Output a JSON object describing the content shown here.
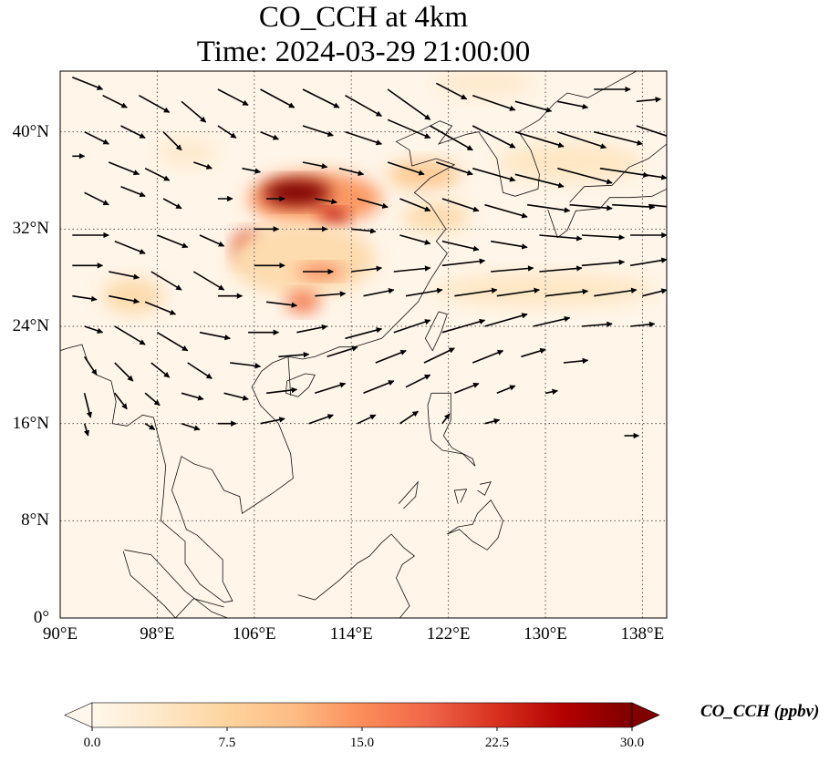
{
  "title": {
    "line1": "CO_CCH at 4km",
    "line2": "Time: 2024-03-29 21:00:00"
  },
  "map": {
    "projection": "PlateCarree",
    "lon_range": [
      90,
      140
    ],
    "lat_range": [
      0,
      45
    ],
    "lat_ticks": [
      {
        "value": 40,
        "label": "40°N"
      },
      {
        "value": 32,
        "label": "32°N"
      },
      {
        "value": 24,
        "label": "24°N"
      },
      {
        "value": 16,
        "label": "16°N"
      },
      {
        "value": 8,
        "label": "8°N"
      },
      {
        "value": 0,
        "label": "0°"
      }
    ],
    "lon_ticks": [
      {
        "value": 90,
        "label": "90°E"
      },
      {
        "value": 98,
        "label": "98°E"
      },
      {
        "value": 106,
        "label": "106°E"
      },
      {
        "value": 114,
        "label": "114°E"
      },
      {
        "value": 122,
        "label": "122°E"
      },
      {
        "value": 130,
        "label": "130°E"
      },
      {
        "value": 138,
        "label": "138°E"
      }
    ],
    "gridlines": "dotted",
    "plumes": [
      {
        "lon": 111,
        "lat": 34.5,
        "rlon": 5.5,
        "rlat": 2.2,
        "value": 14
      },
      {
        "lon": 109.5,
        "lat": 35.0,
        "rlon": 2.8,
        "rlat": 1.1,
        "value": 30
      },
      {
        "lon": 112.5,
        "lat": 33.0,
        "rlon": 1.2,
        "rlat": 0.6,
        "value": 26
      },
      {
        "lon": 105.5,
        "lat": 30.5,
        "rlon": 1.2,
        "rlat": 1.3,
        "value": 22
      },
      {
        "lon": 110,
        "lat": 29.5,
        "rlon": 6,
        "rlat": 3,
        "value": 6
      },
      {
        "lon": 111.5,
        "lat": 28.5,
        "rlon": 2,
        "rlat": 0.6,
        "value": 16
      },
      {
        "lon": 110,
        "lat": 26,
        "rlon": 1.4,
        "rlat": 0.9,
        "value": 17
      },
      {
        "lon": 120,
        "lat": 36.5,
        "rlon": 3,
        "rlat": 1.2,
        "value": 9
      },
      {
        "lon": 121,
        "lat": 33,
        "rlon": 2.8,
        "rlat": 1.2,
        "value": 6
      },
      {
        "lon": 96,
        "lat": 26.5,
        "rlon": 2.5,
        "rlat": 1.5,
        "value": 6
      },
      {
        "lon": 100.5,
        "lat": 38.3,
        "rlon": 2.5,
        "rlat": 1.2,
        "value": 3
      },
      {
        "lon": 132,
        "lat": 37.5,
        "rlon": 6,
        "rlat": 1.6,
        "value": 4
      },
      {
        "lon": 130,
        "lat": 27,
        "rlon": 9,
        "rlat": 1.4,
        "value": 4
      },
      {
        "lon": 125,
        "lat": 44,
        "rlon": 4,
        "rlat": 1.2,
        "value": 3
      }
    ],
    "wind_vectors": [
      [
        91,
        44.5,
        2.5,
        -1
      ],
      [
        93.5,
        43,
        2,
        -1
      ],
      [
        96.5,
        43,
        2.5,
        -1.4
      ],
      [
        100,
        42.5,
        2,
        -1.7
      ],
      [
        103,
        43.5,
        2.5,
        -1.3
      ],
      [
        106.5,
        43.5,
        2.8,
        -1.5
      ],
      [
        110,
        43.5,
        3,
        -1.5
      ],
      [
        113.5,
        43,
        3,
        -1.7
      ],
      [
        117,
        43.5,
        3.5,
        -2.5
      ],
      [
        121,
        44,
        2.5,
        -1.3
      ],
      [
        124,
        43,
        3.5,
        -1.2
      ],
      [
        127.5,
        42.5,
        3,
        -0.8
      ],
      [
        131,
        42.5,
        2.5,
        -0.5
      ],
      [
        134,
        43.5,
        3,
        0
      ],
      [
        137.5,
        42.5,
        2,
        0.2
      ],
      [
        92,
        40,
        2,
        -1
      ],
      [
        95,
        40.5,
        2,
        -1
      ],
      [
        98.5,
        40,
        1.5,
        -1.5
      ],
      [
        103,
        40.5,
        1.5,
        -1
      ],
      [
        106.5,
        40,
        1.5,
        -0.6
      ],
      [
        110,
        40.5,
        2.5,
        -0.8
      ],
      [
        113.5,
        40,
        3,
        -1
      ],
      [
        117,
        41,
        3.5,
        -1.5
      ],
      [
        120.5,
        40.5,
        3.5,
        -2
      ],
      [
        124,
        40.5,
        3.5,
        -1.8
      ],
      [
        127.5,
        40,
        4,
        -1.2
      ],
      [
        131,
        40,
        4,
        -1.3
      ],
      [
        134,
        40,
        4,
        -1
      ],
      [
        137.5,
        40.5,
        3,
        -1
      ],
      [
        91,
        38,
        1,
        0
      ],
      [
        94,
        37.5,
        2.5,
        -1
      ],
      [
        97,
        37,
        2,
        -1
      ],
      [
        101,
        37.5,
        1.5,
        -0.5
      ],
      [
        105,
        37,
        1.5,
        -0.3
      ],
      [
        110,
        37.5,
        2,
        -0.4
      ],
      [
        113,
        37,
        2,
        -0.5
      ],
      [
        117,
        37.5,
        3,
        -1
      ],
      [
        121,
        37.5,
        3,
        -1
      ],
      [
        124,
        37,
        3.5,
        -1
      ],
      [
        127.5,
        36.5,
        4,
        -1
      ],
      [
        131,
        37,
        4.5,
        -1.2
      ],
      [
        134.5,
        37,
        4,
        -0.6
      ],
      [
        138,
        36.5,
        2,
        -0.3
      ],
      [
        92,
        35,
        2,
        -1
      ],
      [
        95,
        35.5,
        2,
        -0.8
      ],
      [
        98.5,
        34.5,
        1.5,
        -0.8
      ],
      [
        103,
        34.5,
        1.2,
        0
      ],
      [
        107,
        34.5,
        1.5,
        0
      ],
      [
        111,
        34.5,
        1.8,
        -0.3
      ],
      [
        114.5,
        34.5,
        2.5,
        -0.7
      ],
      [
        118,
        34.5,
        2.5,
        -1
      ],
      [
        121.5,
        34.5,
        3,
        -1
      ],
      [
        125,
        34,
        3.5,
        -1
      ],
      [
        128.5,
        34,
        3.5,
        -0.5
      ],
      [
        132,
        34,
        3.5,
        -0.3
      ],
      [
        135.5,
        34,
        3.5,
        -0.2
      ],
      [
        138.5,
        34,
        2,
        -0.2
      ],
      [
        91,
        31.5,
        3,
        0
      ],
      [
        94.5,
        31,
        2.5,
        -1
      ],
      [
        98,
        31.5,
        2.5,
        -1
      ],
      [
        101.5,
        31.5,
        2,
        -0.9
      ],
      [
        106,
        32,
        2,
        0
      ],
      [
        110.5,
        32,
        1.5,
        0
      ],
      [
        114,
        32,
        2,
        -0.2
      ],
      [
        118,
        31.5,
        2.5,
        -0.7
      ],
      [
        121.5,
        31,
        3,
        -0.7
      ],
      [
        125.5,
        31,
        3,
        -0.5
      ],
      [
        129.5,
        31.5,
        3.5,
        -0.3
      ],
      [
        133,
        31.5,
        3.5,
        -0.2
      ],
      [
        137,
        31.5,
        3,
        0
      ],
      [
        91,
        29,
        2.5,
        0
      ],
      [
        94,
        28.5,
        2.5,
        -0.5
      ],
      [
        97.5,
        28.5,
        2.5,
        -1.5
      ],
      [
        101,
        28.5,
        2.5,
        -1.5
      ],
      [
        106,
        29,
        2.5,
        0
      ],
      [
        110,
        28.5,
        2.5,
        0
      ],
      [
        114,
        28.5,
        2.5,
        0.3
      ],
      [
        117.5,
        28.5,
        3,
        0.3
      ],
      [
        121.5,
        29,
        3.5,
        0.4
      ],
      [
        125.5,
        28.5,
        3.5,
        0.3
      ],
      [
        129.5,
        28.5,
        3.5,
        0.3
      ],
      [
        133,
        29,
        3.5,
        0.3
      ],
      [
        137,
        29,
        3,
        0.5
      ],
      [
        91,
        26.5,
        2,
        -0.3
      ],
      [
        94,
        26.5,
        2.5,
        -0.5
      ],
      [
        97,
        26,
        2.5,
        -1
      ],
      [
        103,
        26.5,
        2,
        0
      ],
      [
        107,
        26,
        2.5,
        -0.3
      ],
      [
        111,
        26.5,
        2.5,
        0.2
      ],
      [
        115,
        26.5,
        2.5,
        0.5
      ],
      [
        118.5,
        26.5,
        3,
        0.5
      ],
      [
        122.5,
        26.5,
        3.5,
        0.5
      ],
      [
        126,
        26.5,
        3.5,
        0.5
      ],
      [
        130,
        26.5,
        3.5,
        0.4
      ],
      [
        134,
        26.5,
        3.5,
        0.5
      ],
      [
        138,
        26.5,
        2,
        0.5
      ],
      [
        92,
        24,
        1.5,
        -0.5
      ],
      [
        94.5,
        24,
        2.5,
        -1.5
      ],
      [
        98,
        23.5,
        2.5,
        -1.5
      ],
      [
        101.5,
        23.5,
        2.5,
        -0.5
      ],
      [
        105.5,
        23.5,
        2.5,
        0
      ],
      [
        109.5,
        23.5,
        2.5,
        0.5
      ],
      [
        113.5,
        23,
        3,
        0.8
      ],
      [
        117.5,
        23.5,
        3,
        1
      ],
      [
        121.5,
        23.5,
        3.5,
        1
      ],
      [
        125,
        24,
        3.5,
        1
      ],
      [
        129,
        24,
        3,
        0.7
      ],
      [
        133,
        24,
        2.5,
        0.2
      ],
      [
        137,
        24,
        2,
        0.2
      ],
      [
        92,
        21.5,
        1,
        -1.5
      ],
      [
        94.5,
        21,
        1.5,
        -1.5
      ],
      [
        97.5,
        21,
        1.5,
        -1.2
      ],
      [
        100.5,
        21,
        2,
        -1.3
      ],
      [
        104,
        21,
        2.5,
        -0.3
      ],
      [
        108,
        21.5,
        2.5,
        0.2
      ],
      [
        112,
        21.5,
        2.5,
        0.8
      ],
      [
        116,
        21,
        2.5,
        1
      ],
      [
        120,
        21,
        2.5,
        1.2
      ],
      [
        124,
        21,
        2.5,
        1
      ],
      [
        128,
        21.5,
        2,
        0.6
      ],
      [
        131.5,
        21,
        2,
        0.2
      ],
      [
        92,
        18.5,
        0.5,
        -2
      ],
      [
        94.5,
        18.5,
        1,
        -1.3
      ],
      [
        97,
        18.5,
        1.2,
        -1
      ],
      [
        100,
        18.5,
        1.8,
        -0.5
      ],
      [
        103.5,
        18.5,
        2,
        -0.5
      ],
      [
        107,
        18.5,
        2.5,
        0.3
      ],
      [
        111,
        18.5,
        2.5,
        0.8
      ],
      [
        115,
        18.5,
        2.5,
        1
      ],
      [
        118.5,
        19,
        2,
        1
      ],
      [
        122.5,
        18.5,
        2,
        0.8
      ],
      [
        126,
        18.5,
        1.5,
        0.6
      ],
      [
        130,
        18.5,
        1,
        0.2
      ],
      [
        92,
        16,
        0.3,
        -1
      ],
      [
        97,
        16,
        0.8,
        -0.5
      ],
      [
        100,
        16,
        1.5,
        -0.5
      ],
      [
        103,
        16,
        1.5,
        0
      ],
      [
        106.5,
        16,
        2,
        0.4
      ],
      [
        110.5,
        16,
        2,
        0.7
      ],
      [
        114.5,
        16,
        1.5,
        0.7
      ],
      [
        118,
        16,
        1.5,
        1
      ],
      [
        121.5,
        16,
        0.6,
        0.8
      ],
      [
        125,
        16,
        1.2,
        0.3
      ],
      [
        136.5,
        15,
        1.2,
        0
      ]
    ],
    "coast_color": "#111111"
  },
  "colorbar": {
    "label": "CO_CCH (ppbv)",
    "vmin": 0,
    "vmax": 30,
    "ticks": [
      "0.0",
      "7.5",
      "15.0",
      "22.5",
      "30.0"
    ],
    "tick_values": [
      0,
      7.5,
      15,
      22.5,
      30
    ],
    "colormap": "OrRd",
    "colors": [
      "#fff7ec",
      "#fee8c8",
      "#fdd49e",
      "#fdbb84",
      "#fc8d59",
      "#ef6548",
      "#d7301f",
      "#b30000",
      "#7f0000"
    ],
    "extend": "both"
  }
}
